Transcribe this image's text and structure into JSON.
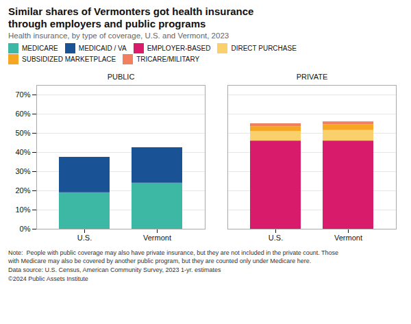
{
  "chart_data": {
    "type": "bar",
    "stacked": true,
    "title": "Similar shares of Vermonters got health insurance\nthrough employers and public programs",
    "subtitle": "Health insurance, by type of coverage, U.S. and Vermont, 2023",
    "groups": [
      "PUBLIC",
      "PUBLIC",
      "PRIVATE",
      "PRIVATE"
    ],
    "categories": [
      "U.S.",
      "Vermont",
      "U.S.",
      "Vermont"
    ],
    "series": [
      {
        "name": "MEDICARE",
        "color": "#3db8a5",
        "values": [
          19,
          24,
          null,
          null
        ]
      },
      {
        "name": "MEDICAID / VA",
        "color": "#1a5296",
        "values": [
          18.5,
          18.5,
          null,
          null
        ]
      },
      {
        "name": "EMPLOYER-BASED",
        "color": "#d81b6a",
        "values": [
          null,
          null,
          46,
          46
        ]
      },
      {
        "name": "DIRECT PURCHASE",
        "color": "#f9d06b",
        "values": [
          null,
          null,
          5.0,
          5.5
        ]
      },
      {
        "name": "SUBSIDIZED MARKETPLACE",
        "color": "#f5a623",
        "values": [
          null,
          null,
          2.5,
          3.0
        ]
      },
      {
        "name": "TRICARE/MILITARY",
        "color": "#f08060",
        "values": [
          null,
          null,
          1.5,
          1.5
        ]
      }
    ],
    "ylim": [
      0,
      75
    ],
    "yticks": [
      {
        "value": 0,
        "label": "0%"
      },
      {
        "value": 10,
        "label": "10%"
      },
      {
        "value": 20,
        "label": "20%"
      },
      {
        "value": 30,
        "label": "30%"
      },
      {
        "value": 40,
        "label": "40%"
      },
      {
        "value": 50,
        "label": "50%"
      },
      {
        "value": 60,
        "label": "60%"
      },
      {
        "value": 70,
        "label": "70%"
      }
    ],
    "grid": true,
    "legend": "top",
    "note": "Note:  People with public coverage may also have private insurance, but they are not included in the private count. Those\nwith Medicare may also be covered by another public program, but they are counted only under Medicare here.",
    "source": "Data source: U.S. Census, American Community Survey, 2023 1-yr. estimates",
    "copyright": "©2024 Public Assets Institute"
  }
}
